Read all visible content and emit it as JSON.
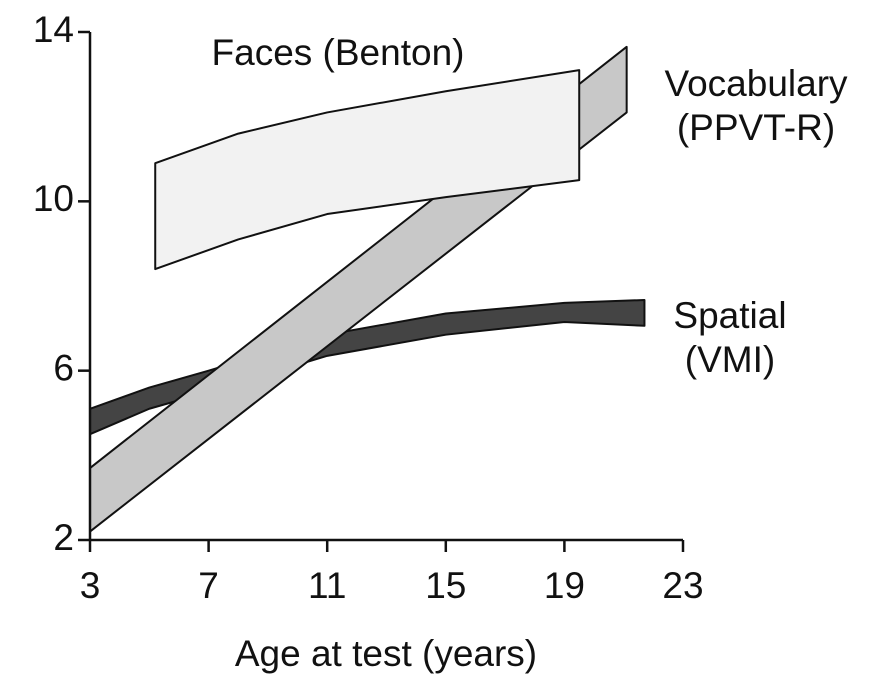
{
  "chart_data": {
    "type": "band",
    "xlabel": "Age at test (years)",
    "xlim": [
      3,
      23
    ],
    "xticks": [
      3,
      7,
      11,
      15,
      19,
      23
    ],
    "ylim": [
      2,
      14
    ],
    "yticks": [
      2,
      6,
      10,
      14
    ],
    "series": [
      {
        "name": "Spatial",
        "note": "(VMI)",
        "color": "#444444",
        "x": [
          3,
          5,
          7,
          11,
          15,
          19,
          21.7
        ],
        "lower": [
          4.5,
          5.1,
          5.5,
          6.35,
          6.85,
          7.15,
          7.06
        ],
        "upper": [
          5.1,
          5.6,
          6.0,
          6.85,
          7.35,
          7.6,
          7.67
        ]
      },
      {
        "name": "Vocabulary",
        "note": "(PPVT-R)",
        "color": "#c8c8c8",
        "x": [
          3,
          21.1
        ],
        "lower": [
          2.2,
          12.1
        ],
        "upper": [
          3.7,
          13.65
        ]
      },
      {
        "name": "Faces (Benton)",
        "color": "#f2f2f2",
        "x": [
          5.2,
          8,
          11,
          15,
          19.5
        ],
        "lower": [
          8.4,
          9.1,
          9.7,
          10.1,
          10.5
        ],
        "upper": [
          10.9,
          11.6,
          12.1,
          12.6,
          13.1
        ]
      }
    ]
  }
}
